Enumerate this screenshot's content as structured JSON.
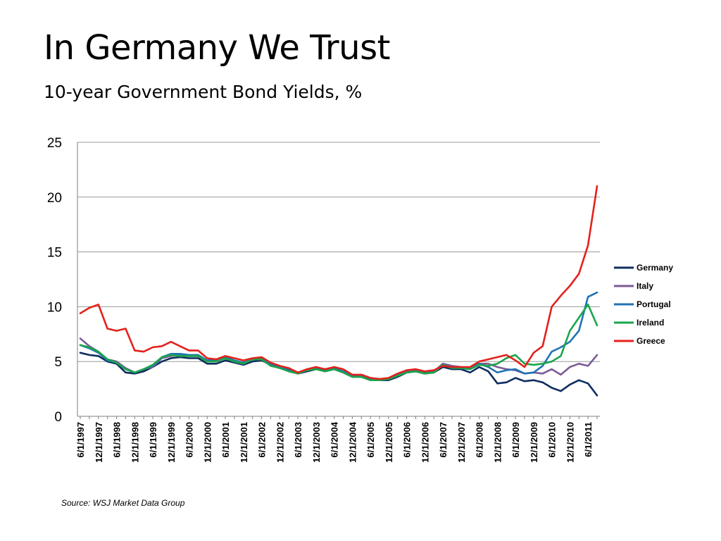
{
  "title": "In Germany We Trust",
  "subtitle": "10-year Government Bond Yields, %",
  "source": "Source: WSJ Market Data Group",
  "chart_data": {
    "type": "line",
    "title": "In Germany We Trust",
    "subtitle": "10-year Government Bond Yields, %",
    "xlabel": "",
    "ylabel": "",
    "ylim": [
      0,
      25
    ],
    "yticks": [
      0,
      5,
      10,
      15,
      20,
      25
    ],
    "grid": true,
    "legend_position": "right",
    "x_labels": [
      "6/1/1997",
      "12/1/1997",
      "6/1/1998",
      "12/1/1998",
      "6/1/1999",
      "12/1/1999",
      "6/1/2000",
      "12/1/2000",
      "6/1/2001",
      "12/1/2001",
      "6/1/2002",
      "12/1/2002",
      "6/1/2003",
      "12/1/2003",
      "6/1/2004",
      "12/1/2004",
      "6/1/2005",
      "12/1/2005",
      "6/1/2006",
      "12/1/2006",
      "6/1/2007",
      "12/1/2007",
      "6/1/2008",
      "12/1/2008",
      "6/1/2009",
      "12/1/2009",
      "6/1/2010",
      "12/1/2010",
      "6/1/2011"
    ],
    "x": [
      "6/1/1997",
      "9/1/1997",
      "12/1/1997",
      "3/1/1998",
      "6/1/1998",
      "9/1/1998",
      "12/1/1998",
      "3/1/1999",
      "6/1/1999",
      "9/1/1999",
      "12/1/1999",
      "3/1/2000",
      "6/1/2000",
      "9/1/2000",
      "12/1/2000",
      "3/1/2001",
      "6/1/2001",
      "9/1/2001",
      "12/1/2001",
      "3/1/2002",
      "6/1/2002",
      "9/1/2002",
      "12/1/2002",
      "3/1/2003",
      "6/1/2003",
      "9/1/2003",
      "12/1/2003",
      "3/1/2004",
      "6/1/2004",
      "9/1/2004",
      "12/1/2004",
      "3/1/2005",
      "6/1/2005",
      "9/1/2005",
      "12/1/2005",
      "3/1/2006",
      "6/1/2006",
      "9/1/2006",
      "12/1/2006",
      "3/1/2007",
      "6/1/2007",
      "9/1/2007",
      "12/1/2007",
      "3/1/2008",
      "6/1/2008",
      "9/1/2008",
      "12/1/2008",
      "3/1/2009",
      "6/1/2009",
      "9/1/2009",
      "12/1/2009",
      "3/1/2010",
      "6/1/2010",
      "9/1/2010",
      "12/1/2010",
      "3/1/2011",
      "6/1/2011",
      "9/1/2011"
    ],
    "series": [
      {
        "name": "Germany",
        "color": "#0f2d5f",
        "values": [
          5.8,
          5.6,
          5.5,
          5.0,
          4.8,
          4.0,
          3.9,
          4.1,
          4.5,
          5.0,
          5.3,
          5.4,
          5.3,
          5.3,
          4.8,
          4.8,
          5.1,
          4.9,
          4.7,
          5.0,
          5.1,
          4.7,
          4.4,
          4.2,
          3.9,
          4.1,
          4.3,
          4.2,
          4.3,
          4.0,
          3.6,
          3.6,
          3.3,
          3.3,
          3.3,
          3.6,
          4.0,
          4.1,
          3.9,
          4.0,
          4.5,
          4.3,
          4.3,
          4.0,
          4.5,
          4.1,
          3.0,
          3.1,
          3.5,
          3.2,
          3.3,
          3.1,
          2.6,
          2.3,
          2.9,
          3.3,
          3.0,
          1.9
        ]
      },
      {
        "name": "Italy",
        "color": "#7b5c97",
        "values": [
          7.1,
          6.4,
          5.9,
          5.2,
          5.0,
          4.4,
          4.0,
          4.3,
          4.5,
          5.3,
          5.5,
          5.6,
          5.5,
          5.5,
          5.0,
          5.1,
          5.3,
          5.0,
          4.8,
          5.2,
          5.2,
          4.8,
          4.5,
          4.3,
          4.0,
          4.2,
          4.4,
          4.3,
          4.4,
          4.1,
          3.8,
          3.7,
          3.5,
          3.4,
          3.4,
          3.8,
          4.1,
          4.2,
          4.0,
          4.1,
          4.8,
          4.6,
          4.5,
          4.4,
          4.8,
          4.8,
          4.5,
          4.3,
          4.2,
          3.9,
          4.0,
          3.9,
          4.3,
          3.8,
          4.5,
          4.8,
          4.6,
          5.6
        ]
      },
      {
        "name": "Portugal",
        "color": "#1f73b4",
        "values": [
          6.5,
          6.2,
          5.8,
          5.1,
          4.9,
          4.3,
          4.0,
          4.3,
          4.6,
          5.4,
          5.7,
          5.7,
          5.6,
          5.6,
          5.1,
          5.2,
          5.4,
          5.1,
          4.9,
          5.2,
          5.3,
          4.7,
          4.5,
          4.3,
          4.0,
          4.2,
          4.4,
          4.3,
          4.4,
          4.1,
          3.7,
          3.6,
          3.4,
          3.3,
          3.4,
          3.7,
          4.0,
          4.1,
          4.0,
          4.1,
          4.7,
          4.5,
          4.4,
          4.3,
          4.8,
          4.5,
          4.0,
          4.2,
          4.3,
          3.9,
          4.0,
          4.6,
          5.9,
          6.3,
          6.8,
          7.8,
          10.9,
          11.3
        ]
      },
      {
        "name": "Ireland",
        "color": "#1aa64a",
        "values": [
          6.5,
          6.3,
          5.9,
          5.2,
          4.9,
          4.3,
          4.0,
          4.3,
          4.7,
          5.4,
          5.6,
          5.5,
          5.5,
          5.5,
          5.0,
          5.0,
          5.3,
          5.0,
          4.8,
          5.2,
          5.2,
          4.6,
          4.4,
          4.1,
          3.9,
          4.2,
          4.3,
          4.1,
          4.3,
          4.0,
          3.6,
          3.6,
          3.3,
          3.3,
          3.4,
          3.7,
          4.0,
          4.1,
          3.9,
          4.0,
          4.7,
          4.4,
          4.4,
          4.3,
          4.7,
          4.6,
          4.8,
          5.3,
          5.6,
          4.8,
          4.7,
          4.8,
          5.0,
          5.5,
          7.8,
          9.0,
          10.2,
          8.3
        ]
      },
      {
        "name": "Greece",
        "color": "#e3211d",
        "values": [
          9.4,
          9.9,
          10.2,
          8.0,
          7.8,
          8.0,
          6.0,
          5.9,
          6.3,
          6.4,
          6.8,
          6.4,
          6.0,
          6.0,
          5.3,
          5.2,
          5.5,
          5.3,
          5.1,
          5.3,
          5.4,
          4.9,
          4.6,
          4.4,
          4.0,
          4.3,
          4.5,
          4.3,
          4.5,
          4.3,
          3.8,
          3.8,
          3.5,
          3.4,
          3.5,
          3.9,
          4.2,
          4.3,
          4.1,
          4.2,
          4.6,
          4.5,
          4.5,
          4.5,
          5.0,
          5.2,
          5.4,
          5.6,
          5.1,
          4.5,
          5.8,
          6.4,
          10.0,
          11.0,
          11.9,
          13.0,
          15.6,
          21.0
        ]
      }
    ]
  }
}
